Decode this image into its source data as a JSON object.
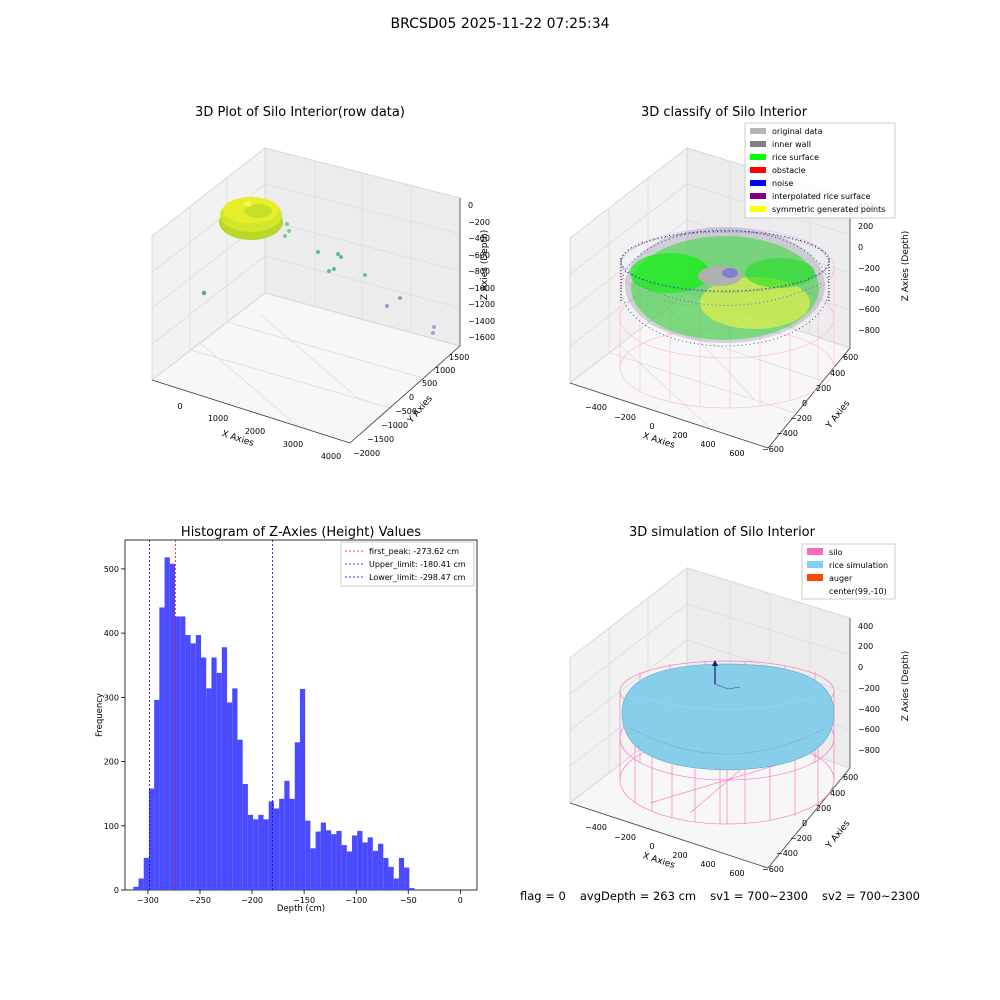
{
  "figure": {
    "suptitle": "BRCSD05 2025-11-22 07:25:34"
  },
  "panel_raw": {
    "title": "3D Plot of Silo Interior(row data)",
    "xlabel": "X Axies",
    "ylabel": "Y Axies",
    "zlabel": "Z Axies (Depth)",
    "x_ticks": [
      "0",
      "1000",
      "2000",
      "3000",
      "4000"
    ],
    "y_ticks": [
      "1500",
      "1000",
      "500",
      "0",
      "−500",
      "−1000",
      "−1500",
      "−2000"
    ],
    "z_ticks": [
      "0",
      "−200",
      "−400",
      "−600",
      "−800",
      "−1000",
      "−1200",
      "−1400",
      "−1600"
    ]
  },
  "panel_classify": {
    "title": "3D classify of Silo Interior",
    "xlabel": "X Axies",
    "ylabel": "Y Axies",
    "zlabel": "Z Axies (Depth)",
    "x_ticks": [
      "−400",
      "−200",
      "0",
      "200",
      "400",
      "600"
    ],
    "y_ticks": [
      "600",
      "400",
      "200",
      "0",
      "−200",
      "−400",
      "−600"
    ],
    "z_ticks": [
      "400",
      "200",
      "0",
      "−200",
      "−400",
      "−600",
      "−800"
    ],
    "legend": [
      {
        "label": "original data",
        "color": "#b4b4b4"
      },
      {
        "label": "inner wall",
        "color": "#808080"
      },
      {
        "label": "rice surface",
        "color": "#00ff00"
      },
      {
        "label": "obstacle",
        "color": "#ff0000"
      },
      {
        "label": "noise",
        "color": "#0000ff"
      },
      {
        "label": "interpolated rice surface",
        "color": "#800080"
      },
      {
        "label": "symmetric generated points",
        "color": "#ffff00"
      }
    ]
  },
  "panel_hist": {
    "title": "Histogram of Z-Axies (Height) Values",
    "xlabel": "Depth (cm)",
    "ylabel": "Frequency",
    "x_ticks": [
      "−300",
      "−250",
      "−200",
      "−150",
      "−100",
      "−50",
      "0"
    ],
    "y_ticks": [
      "0",
      "100",
      "200",
      "300",
      "400",
      "500"
    ],
    "legend": [
      {
        "label": "first_peak: -273.62 cm",
        "color": "#ff0000"
      },
      {
        "label": "Upper_limit: -180.41 cm",
        "color": "#0000ff"
      },
      {
        "label": "Lower_limit: -298.47 cm",
        "color": "#0000ff"
      }
    ]
  },
  "panel_sim": {
    "title": "3D simulation of Silo Interior",
    "xlabel": "X Axies",
    "ylabel": "Y Axies",
    "zlabel": "Z Axies (Depth)",
    "x_ticks": [
      "−400",
      "−200",
      "0",
      "200",
      "400",
      "600"
    ],
    "y_ticks": [
      "600",
      "400",
      "200",
      "0",
      "−200",
      "−400",
      "−600"
    ],
    "z_ticks": [
      "400",
      "200",
      "0",
      "−200",
      "−400",
      "−600",
      "−800"
    ],
    "legend": [
      {
        "label": "silo",
        "color": "#ff69b4"
      },
      {
        "label": "rice simulation",
        "color": "#87ceeb"
      },
      {
        "label": "auger",
        "color": "#ff4500"
      },
      {
        "label": "center(99,-10)",
        "color": "#ffffff"
      }
    ]
  },
  "status": {
    "flag": "flag = 0",
    "avg_depth": "avgDepth = 263 cm",
    "sv1": "sv1 = 700~2300",
    "sv2": "sv2 = 700~2300"
  },
  "chart_data": [
    {
      "type": "scatter",
      "title": "3D Plot of Silo Interior(row data)",
      "xlabel": "X Axies",
      "ylabel": "Y Axies",
      "zlabel": "Z Axies (Depth)",
      "xlim": [
        -400,
        4200
      ],
      "ylim": [
        -2200,
        1800
      ],
      "zlim": [
        -1700,
        100
      ],
      "grid": true
    },
    {
      "type": "scatter",
      "title": "3D classify of Silo Interior",
      "xlabel": "X Axies",
      "ylabel": "Y Axies",
      "zlabel": "Z Axies (Depth)",
      "xlim": [
        -500,
        700
      ],
      "ylim": [
        -700,
        700
      ],
      "zlim": [
        -900,
        450
      ],
      "series": [
        {
          "name": "original data"
        },
        {
          "name": "inner wall"
        },
        {
          "name": "rice surface"
        },
        {
          "name": "obstacle"
        },
        {
          "name": "noise"
        },
        {
          "name": "interpolated rice surface"
        },
        {
          "name": "symmetric generated points"
        }
      ],
      "legend_position": "top-right",
      "grid": true
    },
    {
      "type": "bar",
      "title": "Histogram of Z-Axies (Height) Values",
      "xlabel": "Depth (cm)",
      "ylabel": "Frequency",
      "bin_start": -314,
      "bin_width": 5,
      "xlim": [
        -322,
        16
      ],
      "ylim": [
        0,
        545
      ],
      "values": [
        5,
        18,
        50,
        158,
        296,
        440,
        518,
        508,
        426,
        426,
        397,
        384,
        397,
        362,
        314,
        362,
        338,
        378,
        292,
        314,
        234,
        165,
        117,
        110,
        117,
        110,
        138,
        127,
        142,
        170,
        142,
        230,
        313,
        108,
        65,
        91,
        105,
        93,
        87,
        92,
        70,
        60,
        85,
        92,
        74,
        82,
        61,
        72,
        50,
        36,
        18,
        50,
        35,
        3
      ],
      "vlines": [
        {
          "name": "first_peak",
          "x": -273.62,
          "color": "#ff0000"
        },
        {
          "name": "Upper_limit",
          "x": -180.41,
          "color": "#0000ff"
        },
        {
          "name": "Lower_limit",
          "x": -298.47,
          "color": "#0000ff"
        }
      ],
      "legend_position": "top-right",
      "grid": false
    },
    {
      "type": "scatter",
      "title": "3D simulation of Silo Interior",
      "xlabel": "X Axies",
      "ylabel": "Y Axies",
      "zlabel": "Z Axies (Depth)",
      "xlim": [
        -500,
        700
      ],
      "ylim": [
        -700,
        700
      ],
      "zlim": [
        -900,
        450
      ],
      "series": [
        {
          "name": "silo"
        },
        {
          "name": "rice simulation"
        },
        {
          "name": "auger"
        },
        {
          "name": "center(99,-10)"
        }
      ],
      "legend_position": "top-right",
      "grid": true
    }
  ]
}
